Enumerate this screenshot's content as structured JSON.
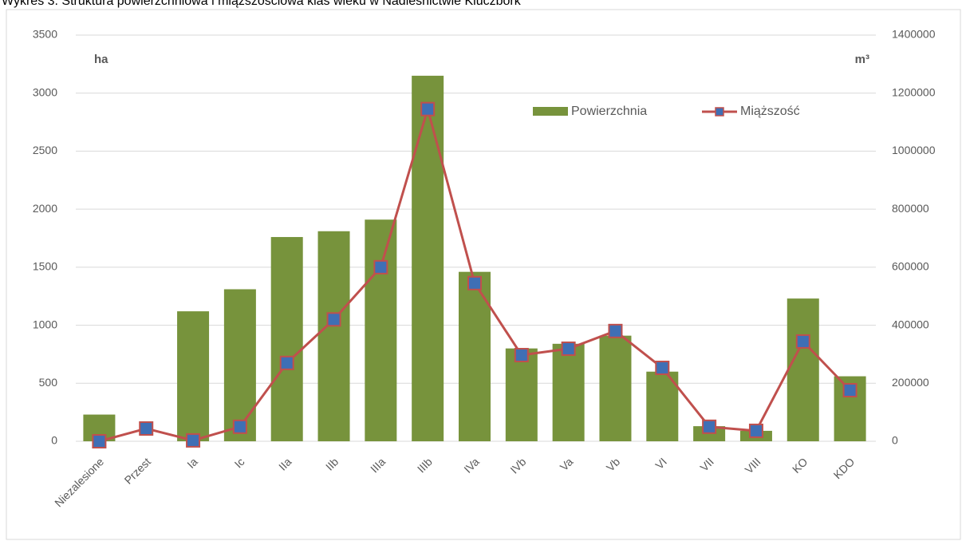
{
  "chart_data": {
    "type": "bar_line",
    "title": "Wykres 3. Struktura powierzchniowa i miąższościowa klas wieku w Nadleśnictwie Kluczbork",
    "ylabel": "ha",
    "y2label": "m³",
    "categories": [
      "Niezalesione",
      "Przest",
      "Ia",
      "Ic",
      "IIa",
      "IIb",
      "IIIa",
      "IIIb",
      "IVa",
      "IVb",
      "Va",
      "Vb",
      "VI",
      "VII",
      "VIII",
      "KO",
      "KDO"
    ],
    "series": [
      {
        "name": "Powierzchnia",
        "type": "bar",
        "color": "#77933c",
        "values": [
          230,
          0,
          1120,
          1310,
          1760,
          1810,
          1910,
          3150,
          1460,
          800,
          840,
          910,
          600,
          130,
          90,
          1230,
          560
        ]
      },
      {
        "name": "Miąższość",
        "type": "line",
        "axis": "y2",
        "color": "#c0504d",
        "marker_color": "#3f6fb5",
        "values": [
          0,
          44000,
          3000,
          50000,
          270000,
          420000,
          600000,
          1145000,
          545000,
          297000,
          319000,
          380000,
          253000,
          50000,
          36000,
          344000,
          176000
        ]
      }
    ],
    "ylim": [
      0,
      3500
    ],
    "yticks": [
      0,
      500,
      1000,
      1500,
      2000,
      2500,
      3000,
      3500
    ],
    "y2lim": [
      0,
      1400000
    ],
    "y2ticks": [
      0,
      200000,
      400000,
      600000,
      800000,
      1000000,
      1200000,
      1400000
    ],
    "grid": true,
    "legend": "upper right"
  }
}
